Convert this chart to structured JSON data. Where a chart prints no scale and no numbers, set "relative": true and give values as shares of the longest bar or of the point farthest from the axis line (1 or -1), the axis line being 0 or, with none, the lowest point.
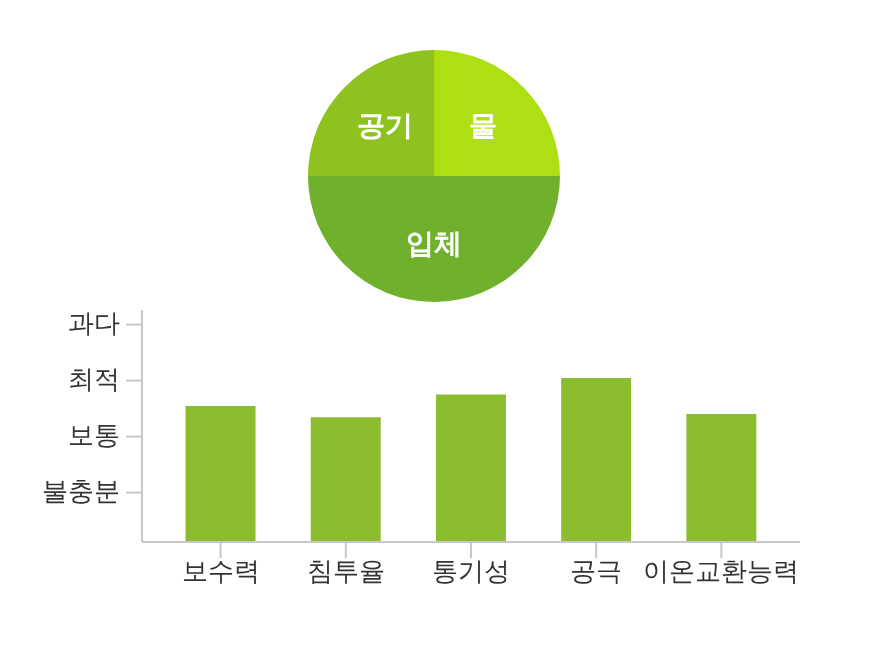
{
  "chart_data": [
    {
      "type": "pie",
      "categories": [
        "물",
        "입체",
        "공기"
      ],
      "values": [
        25,
        50,
        25
      ],
      "colors": [
        "#aedf12",
        "#6fb02c",
        "#8dc21f"
      ]
    },
    {
      "type": "bar",
      "relative": true,
      "categories": [
        "보수력",
        "침투율",
        "통기성",
        "공극",
        "이온교환능력"
      ],
      "values": [
        0.83,
        0.76,
        0.9,
        1,
        0.78
      ],
      "color": "#8cbd30",
      "annotations": [
        "불충분",
        "보통",
        "최적",
        "과다"
      ]
    }
  ]
}
